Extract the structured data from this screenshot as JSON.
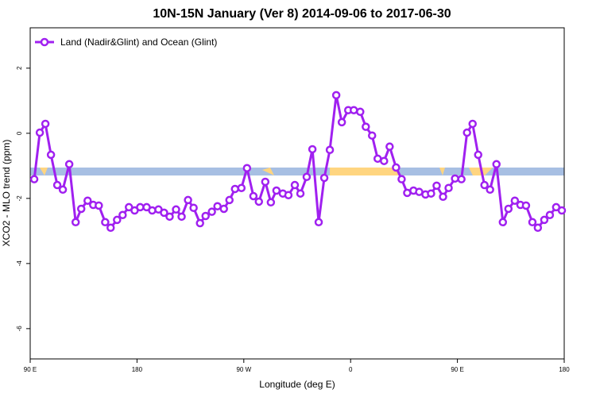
{
  "chart_data": {
    "type": "line",
    "title": "10N-15N January (Ver 8)   2014-09-06 to 2017-06-30",
    "x_label": "Longitude (deg E)",
    "y_label": "XCO2 - MLO trend (ppm)",
    "xlim": [
      90,
      540
    ],
    "ylim": [
      -6.93,
      3.24
    ],
    "xticks": [
      {
        "value": 90,
        "label": "90 E"
      },
      {
        "value": 180,
        "label": "180"
      },
      {
        "value": 270,
        "label": "90 W"
      },
      {
        "value": 360,
        "label": "0"
      },
      {
        "value": 450,
        "label": "90 E"
      },
      {
        "value": 540,
        "label": "180"
      }
    ],
    "yticks": [
      2,
      0,
      -2,
      -4,
      -6
    ],
    "legend": "top-left",
    "x": [
      93.4,
      98.1,
      102.8,
      107.5,
      112.8,
      117.5,
      122.9,
      128.3,
      133.0,
      138.4,
      143.1,
      147.8,
      153.2,
      157.8,
      163.2,
      167.9,
      173.2,
      178.0,
      182.7,
      188.1,
      192.8,
      198.1,
      202.8,
      207.5,
      212.9,
      217.6,
      223.0,
      227.7,
      233.1,
      237.8,
      243.1,
      247.8,
      253.2,
      257.9,
      262.6,
      268.0,
      272.7,
      278.1,
      282.7,
      288.1,
      292.8,
      297.5,
      302.9,
      307.6,
      313.0,
      317.7,
      323.0,
      327.8,
      333.1,
      337.8,
      342.5,
      347.9,
      352.6,
      358.0,
      362.7,
      368.1,
      372.8,
      378.1,
      382.8,
      388.2,
      392.9,
      398.3,
      403.0,
      407.7,
      413.0,
      417.8,
      423.1,
      427.8,
      432.5,
      437.9,
      442.6,
      448.0,
      453.4,
      458.1,
      462.8,
      467.5,
      472.8,
      477.5,
      482.9,
      488.3,
      493.0,
      498.4,
      503.1,
      507.8,
      513.2,
      517.8,
      523.2,
      527.9,
      533.2,
      538.0
    ],
    "series": [
      {
        "name": "Land (Nadir&Glint) and Ocean (Glint)",
        "color": "#a020f0",
        "values": [
          -1.41,
          0.02,
          0.29,
          -0.66,
          -1.59,
          -1.73,
          -0.95,
          -2.73,
          -2.32,
          -2.07,
          -2.2,
          -2.22,
          -2.73,
          -2.9,
          -2.66,
          -2.51,
          -2.27,
          -2.37,
          -2.27,
          -2.27,
          -2.37,
          -2.34,
          -2.44,
          -2.56,
          -2.34,
          -2.56,
          -2.05,
          -2.29,
          -2.76,
          -2.54,
          -2.41,
          -2.24,
          -2.32,
          -2.05,
          -1.71,
          -1.68,
          -1.07,
          -1.93,
          -2.1,
          -1.49,
          -2.12,
          -1.76,
          -1.85,
          -1.9,
          -1.59,
          -1.85,
          -1.34,
          -0.49,
          -2.73,
          -1.37,
          -0.51,
          1.17,
          0.34,
          0.71,
          0.71,
          0.66,
          0.2,
          -0.07,
          -0.78,
          -0.85,
          -0.41,
          -1.05,
          -1.41,
          -1.83,
          -1.76,
          -1.8,
          -1.88,
          -1.85,
          -1.61,
          -1.95,
          -1.68,
          -1.39,
          -1.41,
          0.02,
          0.29,
          -0.66,
          -1.59,
          -1.73,
          -0.95,
          -2.73,
          -2.32,
          -2.07,
          -2.2,
          -2.22,
          -2.73,
          -2.9,
          -2.66,
          -2.51,
          -2.27,
          -2.37
        ]
      }
    ]
  }
}
